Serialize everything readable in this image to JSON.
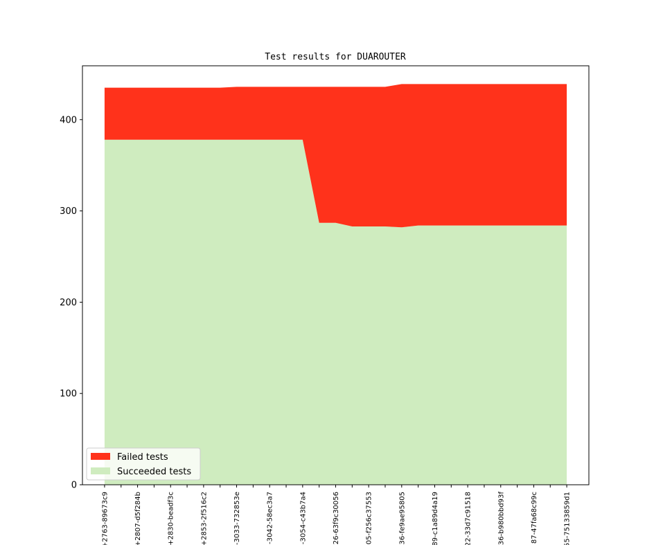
{
  "chart_data": {
    "type": "area",
    "stacked": true,
    "title": "Test results for DUAROUTER",
    "xlabel": "",
    "ylabel": "",
    "ylim": [
      0,
      459
    ],
    "xlim": [
      -1.34,
      29.34
    ],
    "yticks": [
      0,
      100,
      200,
      300,
      400
    ],
    "x_tick_labels": [
      "+2763-89673c9",
      "+2807-d5f284b",
      "+2830-beadf3c",
      "+2853-2f516c2",
      "-3033-732853e",
      "-3042-58ec3a7",
      "-3054-c43b7a4",
      "26-63f9c30056",
      "05-f256c37553",
      "36-fe9ae95805",
      "89-c1a89d4a19",
      "22-33d7c91518",
      "36-b980bbd93f",
      "87-47fa68c99c",
      "55-75133859d1"
    ],
    "x_label_every": 2,
    "series": [
      {
        "name": "Succeeded tests",
        "color": "#cfecbf",
        "values": [
          378,
          378,
          378,
          378,
          378,
          378,
          378,
          378,
          378,
          378,
          378,
          378,
          378,
          287,
          287,
          283,
          283,
          283,
          282,
          284,
          284,
          284,
          284,
          284,
          284,
          284,
          284,
          284,
          284
        ]
      },
      {
        "name": "Failed tests",
        "color": "#ff321b",
        "values": [
          57,
          57,
          57,
          57,
          57,
          57,
          57,
          57,
          58,
          58,
          58,
          58,
          58,
          149,
          149,
          153,
          153,
          153,
          157,
          155,
          155,
          155,
          155,
          155,
          155,
          155,
          155,
          155,
          155
        ]
      }
    ],
    "legend": {
      "placement": "lower-left",
      "entries": [
        "Failed tests",
        "Succeeded tests"
      ]
    },
    "grid": false
  }
}
